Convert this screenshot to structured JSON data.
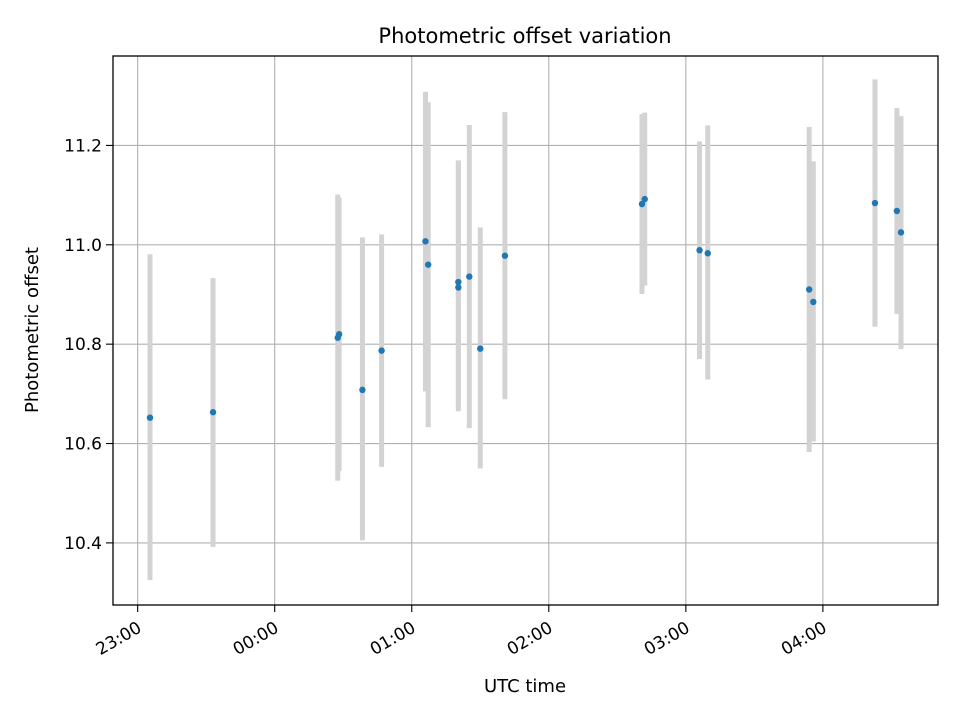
{
  "chart_data": {
    "type": "scatter",
    "title": "Photometric offset variation",
    "xlabel": "UTC time",
    "ylabel": "Photometric offset",
    "x_units": "UTC time (hours from 00:00; negative = previous day)",
    "xlim": [
      -1.18,
      4.84
    ],
    "ylim": [
      10.275,
      11.38
    ],
    "grid": true,
    "x_ticks": [
      {
        "value": -1,
        "label": "23:00"
      },
      {
        "value": 0,
        "label": "00:00"
      },
      {
        "value": 1,
        "label": "01:00"
      },
      {
        "value": 2,
        "label": "02:00"
      },
      {
        "value": 3,
        "label": "03:00"
      },
      {
        "value": 4,
        "label": "04:00"
      }
    ],
    "y_ticks": [
      {
        "value": 10.4,
        "label": "10.4"
      },
      {
        "value": 10.6,
        "label": "10.6"
      },
      {
        "value": 10.8,
        "label": "10.8"
      },
      {
        "value": 11.0,
        "label": "11.0"
      },
      {
        "value": 11.2,
        "label": "11.2"
      }
    ],
    "point_color": "#1f77b4",
    "errorbar_color": "#d3d3d3",
    "points": [
      {
        "x": -0.91,
        "y": 10.652,
        "ylo": 10.325,
        "yhi": 10.981
      },
      {
        "x": -0.45,
        "y": 10.663,
        "ylo": 10.392,
        "yhi": 10.933
      },
      {
        "x": 0.46,
        "y": 10.813,
        "ylo": 10.525,
        "yhi": 11.101
      },
      {
        "x": 0.47,
        "y": 10.82,
        "ylo": 10.545,
        "yhi": 11.095
      },
      {
        "x": 0.64,
        "y": 10.708,
        "ylo": 10.405,
        "yhi": 11.015
      },
      {
        "x": 0.78,
        "y": 10.787,
        "ylo": 10.553,
        "yhi": 11.021
      },
      {
        "x": 1.1,
        "y": 11.007,
        "ylo": 10.705,
        "yhi": 11.308
      },
      {
        "x": 1.12,
        "y": 10.96,
        "ylo": 10.633,
        "yhi": 11.287
      },
      {
        "x": 1.34,
        "y": 10.925,
        "ylo": 10.679,
        "yhi": 11.17
      },
      {
        "x": 1.34,
        "y": 10.914,
        "ylo": 10.665,
        "yhi": 11.165
      },
      {
        "x": 1.42,
        "y": 10.936,
        "ylo": 10.631,
        "yhi": 11.241
      },
      {
        "x": 1.5,
        "y": 10.791,
        "ylo": 10.55,
        "yhi": 11.035
      },
      {
        "x": 1.68,
        "y": 10.978,
        "ylo": 10.689,
        "yhi": 11.267
      },
      {
        "x": 2.68,
        "y": 11.082,
        "ylo": 10.901,
        "yhi": 11.263
      },
      {
        "x": 2.7,
        "y": 11.092,
        "ylo": 10.918,
        "yhi": 11.266
      },
      {
        "x": 3.1,
        "y": 10.989,
        "ylo": 10.77,
        "yhi": 11.208
      },
      {
        "x": 3.16,
        "y": 10.983,
        "ylo": 10.729,
        "yhi": 11.24
      },
      {
        "x": 3.9,
        "y": 10.91,
        "ylo": 10.583,
        "yhi": 11.237
      },
      {
        "x": 3.93,
        "y": 10.885,
        "ylo": 10.604,
        "yhi": 11.168
      },
      {
        "x": 4.38,
        "y": 11.084,
        "ylo": 10.835,
        "yhi": 11.333
      },
      {
        "x": 4.54,
        "y": 11.068,
        "ylo": 10.861,
        "yhi": 11.275
      },
      {
        "x": 4.57,
        "y": 11.025,
        "ylo": 10.79,
        "yhi": 11.259
      }
    ]
  }
}
